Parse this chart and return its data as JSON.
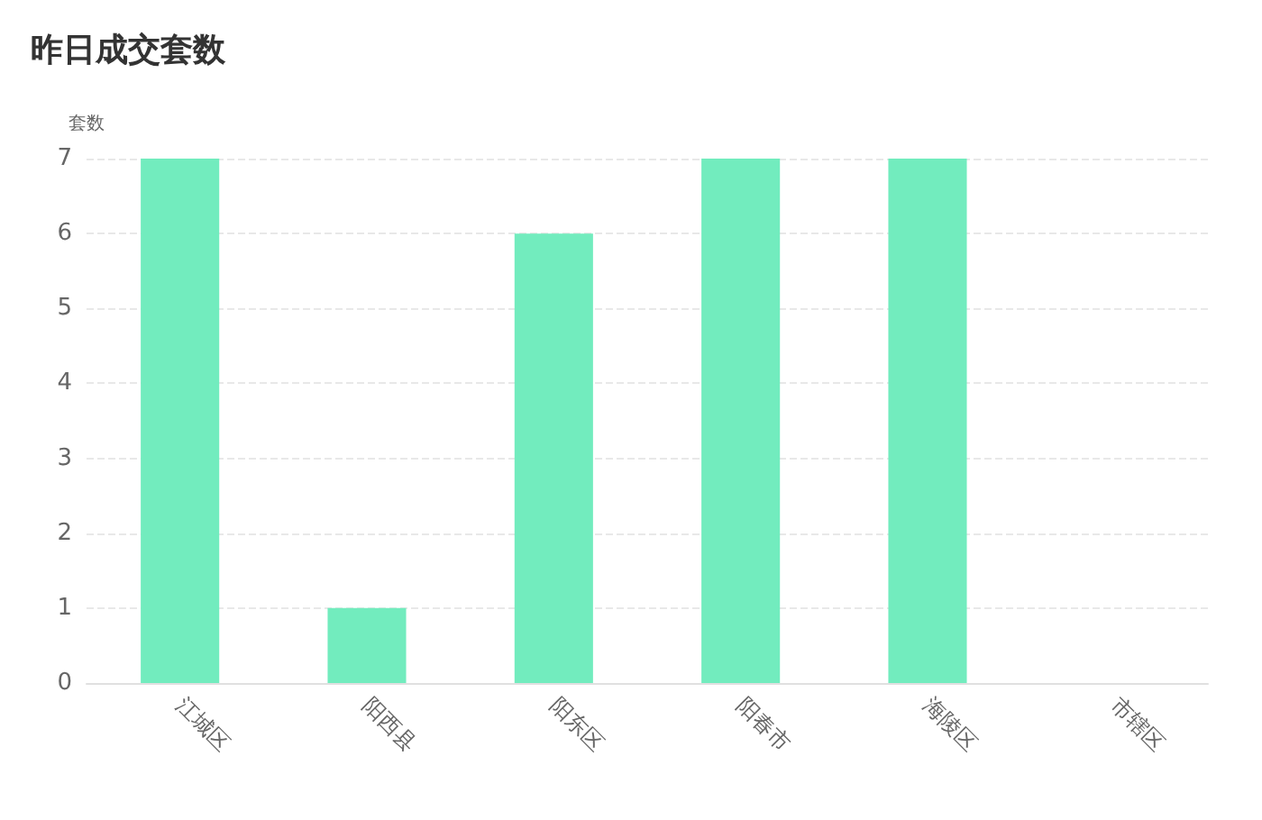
{
  "chart_data": {
    "type": "bar",
    "title": "昨日成交套数",
    "ylabel": "套数",
    "categories": [
      "江城区",
      "阳西县",
      "阳东区",
      "阳春市",
      "海陵区",
      "市辖区"
    ],
    "values": [
      7,
      1,
      6,
      7,
      7,
      0
    ],
    "color": "#72ecbe",
    "ylim": [
      0,
      7
    ],
    "yticks": [
      0,
      1,
      2,
      3,
      4,
      5,
      6,
      7
    ],
    "grid": "y"
  }
}
